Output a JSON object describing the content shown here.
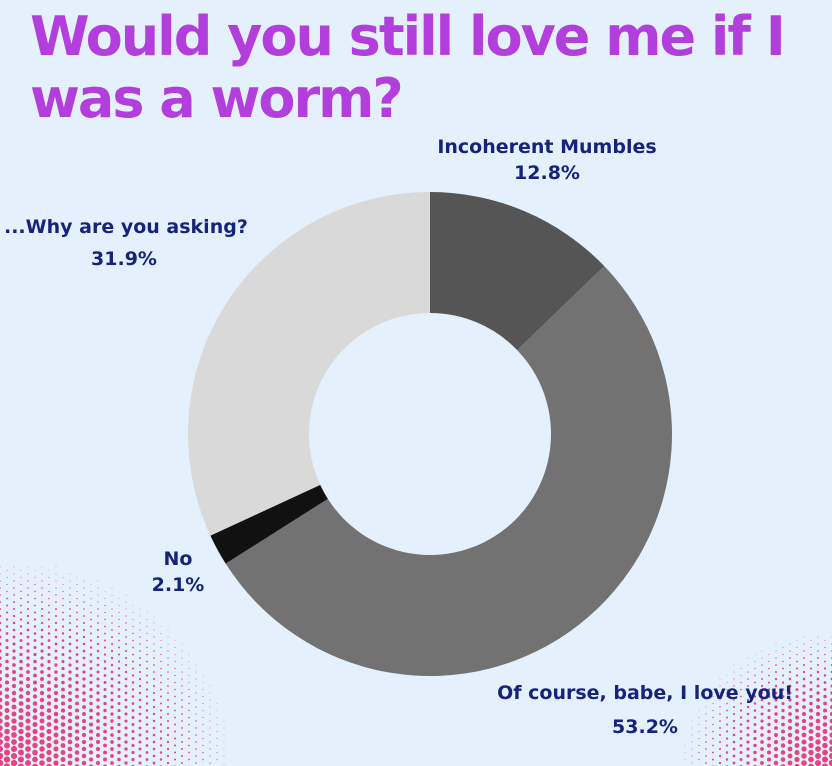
{
  "title": "Would you still love me if I was a worm?",
  "colors": {
    "background": "#e5f0fd",
    "title": "#b23fdc",
    "label": "#15237a",
    "dots": "#e8306e"
  },
  "chart_data": {
    "type": "pie",
    "donut": true,
    "start": "12 o'clock",
    "direction": "clockwise",
    "slices": [
      {
        "label": "Incoherent Mumbles",
        "value": 12.8,
        "pct_label": "12.8%",
        "color": "#555555"
      },
      {
        "label": "Of course, babe, I love you!",
        "value": 53.2,
        "pct_label": "53.2%",
        "color": "#727272"
      },
      {
        "label": "No",
        "value": 2.1,
        "pct_label": "2.1%",
        "color": "#111111"
      },
      {
        "label": "...Why are you asking?",
        "value": 31.9,
        "pct_label": "31.9%",
        "color": "#d9d9d9"
      }
    ]
  }
}
